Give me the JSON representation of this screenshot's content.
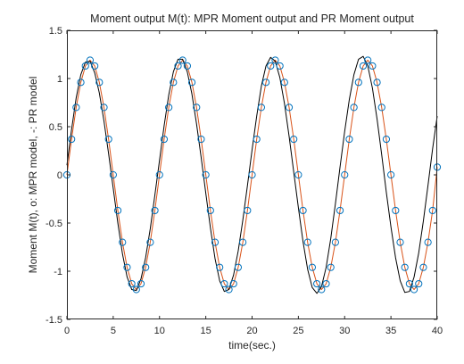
{
  "chart_data": {
    "type": "line",
    "title": "Moment output M(t):  MPR Moment output and PR Moment output",
    "xlabel": "time(sec.)",
    "ylabel": "Moment  M(t),   o: MPR model,  -: PR model",
    "xlim": [
      0,
      40
    ],
    "ylim": [
      -1.5,
      1.5
    ],
    "xticks": [
      0,
      5,
      10,
      15,
      20,
      25,
      30,
      35,
      40
    ],
    "xtick_labels": [
      "0",
      "5",
      "10",
      "15",
      "20",
      "25",
      "30",
      "35",
      "40"
    ],
    "yticks": [
      -1.5,
      -1,
      -0.5,
      0,
      0.5,
      1,
      1.5
    ],
    "ytick_labels": [
      "-1.5",
      "-1",
      "-0.5",
      "0",
      "0.5",
      "1",
      "1.5"
    ],
    "grid": false,
    "series": [
      {
        "marker": "circle",
        "color": "#0072BD",
        "x": [
          0,
          0.5,
          1,
          1.5,
          2,
          2.5,
          3,
          3.5,
          4,
          4.5,
          5,
          5.5,
          6,
          6.5,
          7,
          7.5,
          8,
          8.5,
          9,
          9.5,
          10,
          10.5,
          11,
          11.5,
          12,
          12.5,
          13,
          13.5,
          14,
          14.5,
          15,
          15.5,
          16,
          16.5,
          17,
          17.5,
          18,
          18.5,
          19,
          19.5,
          20,
          20.5,
          21,
          21.5,
          22,
          22.5,
          23,
          23.5,
          24,
          24.5,
          25,
          25.5,
          26,
          26.5,
          27,
          27.5,
          28,
          28.5,
          29,
          29.5,
          30,
          30.5,
          31,
          31.5,
          32,
          32.5,
          33,
          33.5,
          34,
          34.5,
          35,
          35.5,
          36,
          36.5,
          37,
          37.5,
          38,
          38.5,
          39,
          39.5,
          40
        ],
        "y": [
          0,
          0.37,
          0.7,
          0.96,
          1.13,
          1.19,
          1.13,
          0.96,
          0.7,
          0.37,
          0,
          -0.37,
          -0.7,
          -0.96,
          -1.13,
          -1.19,
          -1.13,
          -0.96,
          -0.7,
          -0.37,
          0,
          0.37,
          0.7,
          0.96,
          1.13,
          1.19,
          1.13,
          0.96,
          0.7,
          0.37,
          0,
          -0.37,
          -0.7,
          -0.96,
          -1.13,
          -1.19,
          -1.13,
          -0.96,
          -0.7,
          -0.37,
          0,
          0.37,
          0.7,
          0.96,
          1.13,
          1.19,
          1.13,
          0.96,
          0.7,
          0.37,
          0,
          -0.37,
          -0.7,
          -0.96,
          -1.13,
          -1.19,
          -1.13,
          -0.96,
          -0.7,
          -0.37,
          0,
          0.37,
          0.7,
          0.96,
          1.13,
          1.19,
          1.13,
          0.96,
          0.7,
          0.37,
          0,
          -0.37,
          -0.7,
          -0.96,
          -1.13,
          -1.19,
          -1.13,
          -0.96,
          -0.7,
          -0.37,
          0.08
        ]
      },
      {
        "marker": "line",
        "color": "#D95319",
        "x": [
          0,
          0.5,
          1,
          1.5,
          2,
          2.5,
          3,
          3.5,
          4,
          4.5,
          5,
          5.5,
          6,
          6.5,
          7,
          7.5,
          8,
          8.5,
          9,
          9.5,
          10,
          10.5,
          11,
          11.5,
          12,
          12.5,
          13,
          13.5,
          14,
          14.5,
          15,
          15.5,
          16,
          16.5,
          17,
          17.5,
          18,
          18.5,
          19,
          19.5,
          20,
          20.5,
          21,
          21.5,
          22,
          22.5,
          23,
          23.5,
          24,
          24.5,
          25,
          25.5,
          26,
          26.5,
          27,
          27.5,
          28,
          28.5,
          29,
          29.5,
          30,
          30.5,
          31,
          31.5,
          32,
          32.5,
          33,
          33.5,
          34,
          34.5,
          35,
          35.5,
          36,
          36.5,
          37,
          37.5,
          38,
          38.5,
          39,
          39.5,
          40
        ],
        "y": [
          0,
          0.37,
          0.7,
          0.96,
          1.13,
          1.19,
          1.13,
          0.96,
          0.7,
          0.37,
          0,
          -0.37,
          -0.7,
          -0.96,
          -1.13,
          -1.19,
          -1.13,
          -0.96,
          -0.7,
          -0.37,
          0,
          0.37,
          0.7,
          0.96,
          1.13,
          1.19,
          1.13,
          0.96,
          0.7,
          0.37,
          0,
          -0.37,
          -0.7,
          -0.96,
          -1.13,
          -1.19,
          -1.13,
          -0.96,
          -0.7,
          -0.37,
          0,
          0.37,
          0.7,
          0.96,
          1.13,
          1.19,
          1.13,
          0.96,
          0.7,
          0.37,
          0,
          -0.37,
          -0.7,
          -0.96,
          -1.13,
          -1.19,
          -1.13,
          -0.96,
          -0.7,
          -0.37,
          0,
          0.37,
          0.7,
          0.96,
          1.13,
          1.19,
          1.13,
          0.96,
          0.7,
          0.37,
          0,
          -0.37,
          -0.7,
          -0.96,
          -1.13,
          -1.19,
          -1.13,
          -0.96,
          -0.7,
          -0.37,
          0.08
        ]
      },
      {
        "marker": "line",
        "color": "#000000",
        "x": [
          0,
          0.5,
          1,
          1.5,
          2,
          2.5,
          3,
          3.5,
          4,
          4.5,
          5,
          5.5,
          6,
          6.5,
          7,
          7.5,
          8,
          8.5,
          9,
          9.5,
          10,
          10.5,
          11,
          11.5,
          12,
          12.5,
          13,
          13.5,
          14,
          14.5,
          15,
          15.5,
          16,
          16.5,
          17,
          17.5,
          18,
          18.5,
          19,
          19.5,
          20,
          20.5,
          21,
          21.5,
          22,
          22.5,
          23,
          23.5,
          24,
          24.5,
          25,
          25.5,
          26,
          26.5,
          27,
          27.5,
          28,
          28.5,
          29,
          29.5,
          30,
          30.5,
          31,
          31.5,
          32,
          32.5,
          33,
          33.5,
          34,
          34.5,
          35,
          35.5,
          36,
          36.5,
          37,
          37.5,
          38,
          38.5,
          39,
          39.5,
          40
        ],
        "y": [
          0.1,
          0.47,
          0.8,
          1.04,
          1.17,
          1.18,
          1.06,
          0.85,
          0.56,
          0.22,
          -0.14,
          -0.5,
          -0.82,
          -1.06,
          -1.19,
          -1.2,
          -1.08,
          -0.86,
          -0.56,
          -0.21,
          0.15,
          0.51,
          0.83,
          1.07,
          1.2,
          1.2,
          1.07,
          0.84,
          0.53,
          0.18,
          -0.19,
          -0.55,
          -0.87,
          -1.1,
          -1.21,
          -1.19,
          -1.04,
          -0.79,
          -0.47,
          -0.11,
          0.26,
          0.61,
          0.92,
          1.13,
          1.22,
          1.18,
          1.01,
          0.74,
          0.4,
          0.03,
          -0.34,
          -0.69,
          -0.98,
          -1.17,
          -1.23,
          -1.16,
          -0.96,
          -0.66,
          -0.3,
          0.08,
          0.45,
          0.78,
          1.04,
          1.2,
          1.23,
          1.13,
          0.9,
          0.58,
          0.21,
          -0.18,
          -0.54,
          -0.86,
          -1.1,
          -1.22,
          -1.21,
          -1.06,
          -0.81,
          -0.48,
          -0.11,
          0.27,
          0.61
        ]
      }
    ]
  }
}
